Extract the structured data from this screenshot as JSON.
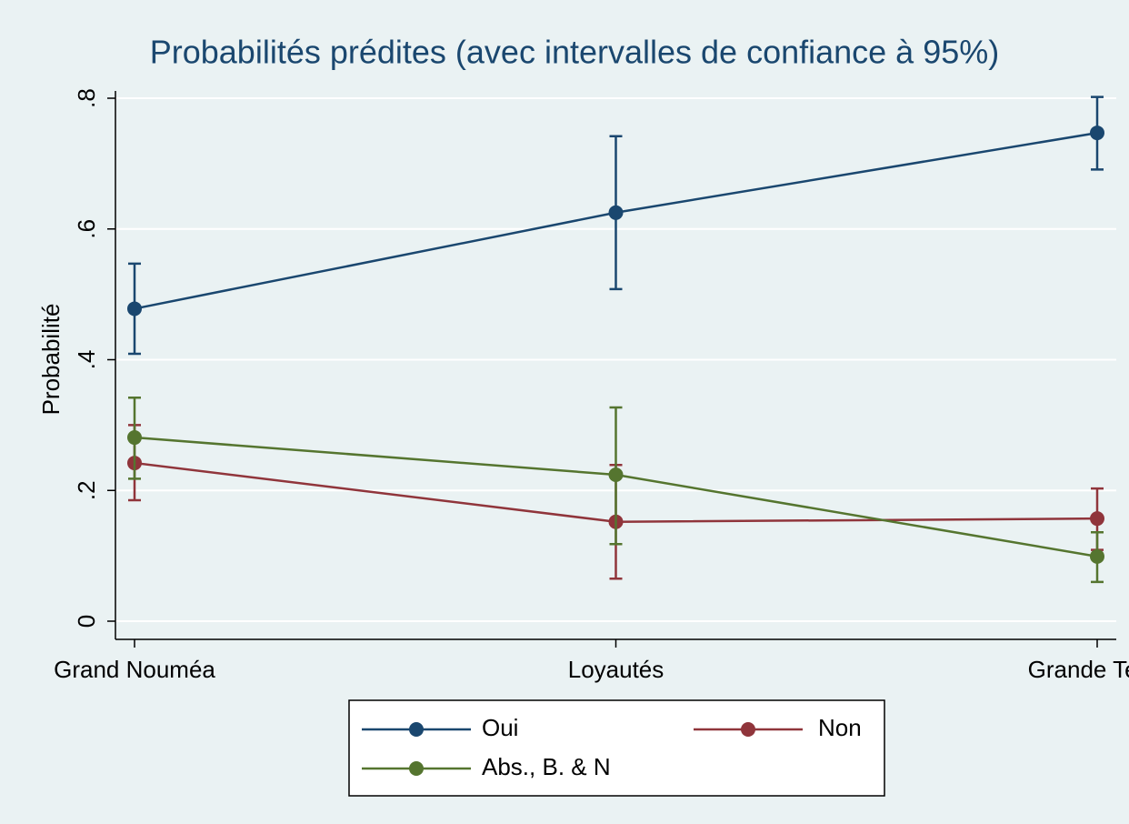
{
  "chart_data": {
    "type": "line",
    "title": "Probabilités prédites (avec intervalles de confiance à 95%)",
    "y_label": "Probabilité",
    "categories": [
      "Grand Nouméa",
      "Loyautés",
      "Grande Terre"
    ],
    "series": [
      {
        "name": "Oui",
        "color": "#1a476f",
        "values": [
          0.478,
          0.625,
          0.747
        ],
        "lower": [
          0.409,
          0.508,
          0.691
        ],
        "upper": [
          0.547,
          0.742,
          0.802
        ]
      },
      {
        "name": "Non",
        "color": "#90353b",
        "values": [
          0.242,
          0.152,
          0.157
        ],
        "lower": [
          0.185,
          0.065,
          0.109
        ],
        "upper": [
          0.3,
          0.239,
          0.203
        ]
      },
      {
        "name": "Abs., B. & N",
        "color": "#55752f",
        "values": [
          0.281,
          0.224,
          0.099
        ],
        "lower": [
          0.218,
          0.118,
          0.06
        ],
        "upper": [
          0.342,
          0.327,
          0.136
        ]
      }
    ],
    "ylim": [
      0,
      0.8
    ],
    "yticks": [
      0,
      {
        "value": 0.2,
        "label": ".2"
      },
      {
        "value": 0.4,
        "label": ".4"
      },
      {
        "value": 0.6,
        "label": ".6"
      },
      {
        "value": 0.8,
        "label": ".8"
      }
    ],
    "grid": true
  }
}
